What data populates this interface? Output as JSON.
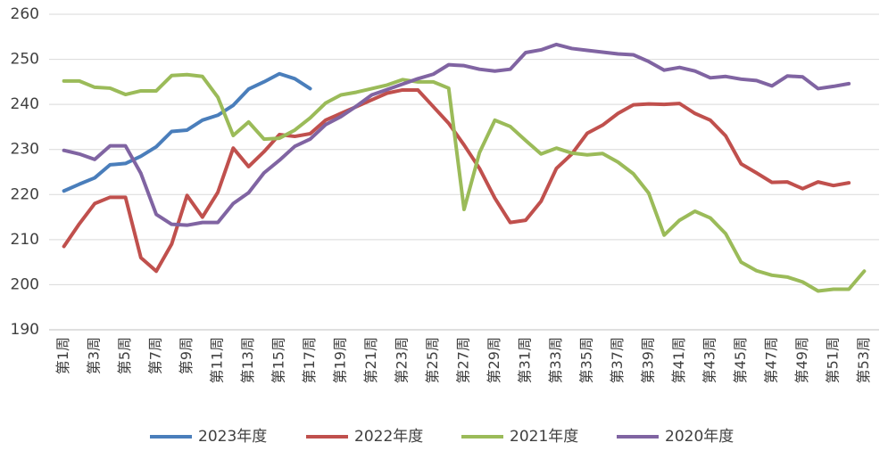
{
  "chart_data": {
    "type": "line",
    "categories": [
      "第1周",
      null,
      "第3周",
      null,
      "第5周",
      null,
      "第7周",
      null,
      "第9周",
      null,
      "第11周",
      null,
      "第13周",
      null,
      "第15周",
      null,
      "第17周",
      null,
      "第19周",
      null,
      "第21周",
      null,
      "第23周",
      null,
      "第25周",
      null,
      "第27周",
      null,
      "第29周",
      null,
      "第31周",
      null,
      "第33周",
      null,
      "第35周",
      null,
      "第37周",
      null,
      "第39周",
      null,
      "第41周",
      null,
      "第43周",
      null,
      "第45周",
      null,
      "第47周",
      null,
      "第49周",
      null,
      "第51周",
      null,
      "第53周"
    ],
    "series": [
      {
        "name": "2023年度",
        "color": "#4a7ebb",
        "values": [
          220.8,
          222.3,
          223.7,
          226.6,
          226.9,
          228.5,
          230.6,
          234,
          234.3,
          236.5,
          237.6,
          239.8,
          243.4,
          245,
          246.8,
          245.7,
          243.5,
          null,
          null,
          null,
          null,
          null,
          null,
          null,
          null,
          null,
          null,
          null,
          null,
          null,
          null,
          null,
          null,
          null,
          null,
          null,
          null,
          null,
          null,
          null,
          null,
          null,
          null,
          null,
          null,
          null,
          null,
          null,
          null,
          null,
          null,
          null,
          null
        ]
      },
      {
        "name": "2022年度",
        "color": "#c0504d",
        "values": [
          208.5,
          213.5,
          218,
          219.4,
          219.4,
          206,
          203,
          209,
          219.8,
          215,
          220.5,
          230.3,
          226.2,
          229.5,
          233.3,
          232.9,
          233.5,
          236.5,
          238,
          239.5,
          241,
          242.5,
          243.2,
          243.2,
          239.5,
          235.8,
          231,
          225.8,
          219.2,
          213.8,
          214.3,
          218.5,
          225.8,
          229,
          233.6,
          235.4,
          238,
          239.9,
          240.1,
          240,
          240.2,
          238,
          236.5,
          233,
          226.8,
          224.8,
          222.7,
          222.8,
          221.3,
          222.8,
          222,
          222.6,
          null
        ]
      },
      {
        "name": "2021年度",
        "color": "#9bbb59",
        "values": [
          245.2,
          245.2,
          243.8,
          243.6,
          242.2,
          243,
          243,
          246.4,
          246.6,
          246.2,
          241.6,
          233.1,
          236.1,
          232.3,
          232.5,
          234.3,
          237,
          240.3,
          242.1,
          242.7,
          243.5,
          244.3,
          245.5,
          245,
          245,
          243.6,
          216.7,
          229.3,
          236.5,
          235.1,
          232,
          229,
          230.3,
          229.2,
          228.8,
          229.1,
          227.2,
          224.6,
          220.3,
          211,
          214.3,
          216.3,
          214.8,
          211.3,
          205,
          203.1,
          202.1,
          201.7,
          200.6,
          198.6,
          199,
          199,
          203
        ]
      },
      {
        "name": "2020年度",
        "color": "#8064a2",
        "values": [
          229.8,
          229,
          227.8,
          230.8,
          230.8,
          224.7,
          215.6,
          213.4,
          213.2,
          213.8,
          213.8,
          218,
          220.4,
          224.8,
          227.6,
          230.7,
          232.3,
          235.5,
          237.3,
          239.6,
          242.1,
          243.3,
          244.5,
          245.7,
          246.7,
          248.8,
          248.6,
          247.8,
          247.4,
          247.8,
          251.5,
          252.1,
          253.3,
          252.4,
          252,
          251.6,
          251.2,
          251,
          249.5,
          247.6,
          248.2,
          247.4,
          245.9,
          246.2,
          245.6,
          245.3,
          244.1,
          246.3,
          246.1,
          243.5,
          244,
          244.6,
          null
        ]
      }
    ],
    "ylim": [
      190,
      260
    ],
    "yticks": [
      190,
      200,
      210,
      220,
      230,
      240,
      250,
      260
    ],
    "grid": true,
    "legend": "bottom"
  }
}
